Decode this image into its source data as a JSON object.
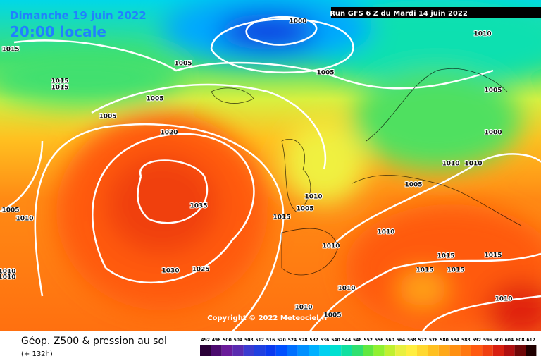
{
  "header": {
    "date": "Dimanche 19 juin 2022",
    "time": "20:00 locale",
    "run": "Run GFS 6 Z du Mardi 14 juin 2022"
  },
  "copyright": "Copyright © 2022 Meteociel.fr",
  "footer": {
    "title": "Géop. Z500 & pression au sol",
    "lead": "(+ 132h)"
  },
  "isobar_labels": [
    "1000",
    "1010",
    "1015",
    "1005",
    "1005",
    "1015",
    "1015",
    "1005",
    "1005",
    "1005",
    "1000",
    "1020",
    "1010",
    "1010",
    "1005",
    "1010",
    "1005",
    "1015",
    "1035",
    "1005",
    "1010",
    "1010",
    "1010",
    "1015",
    "1015",
    "1015",
    "1015",
    "1030",
    "1025",
    "1010",
    "1010",
    "1010",
    "1010",
    "1010",
    "1005"
  ],
  "legend": {
    "values": [
      492,
      496,
      500,
      504,
      508,
      512,
      516,
      520,
      524,
      528,
      532,
      536,
      540,
      544,
      548,
      552,
      556,
      560,
      564,
      568,
      572,
      576,
      580,
      584,
      588,
      592,
      596,
      600,
      604,
      608,
      612
    ],
    "colors": [
      "#2a0038",
      "#4b0a6e",
      "#6a1b9a",
      "#5a2bb0",
      "#3b3bd0",
      "#2040e0",
      "#0a3af0",
      "#0050ff",
      "#0070ff",
      "#0090ff",
      "#00b0ff",
      "#00d0f0",
      "#00e0d0",
      "#10e0a0",
      "#30e070",
      "#60e840",
      "#90f030",
      "#c0f030",
      "#e8f040",
      "#ffee40",
      "#ffd830",
      "#ffc020",
      "#ffa818",
      "#ff9010",
      "#ff7810",
      "#ff5a10",
      "#f04010",
      "#d82010",
      "#b01010",
      "#700808",
      "#200000"
    ]
  }
}
